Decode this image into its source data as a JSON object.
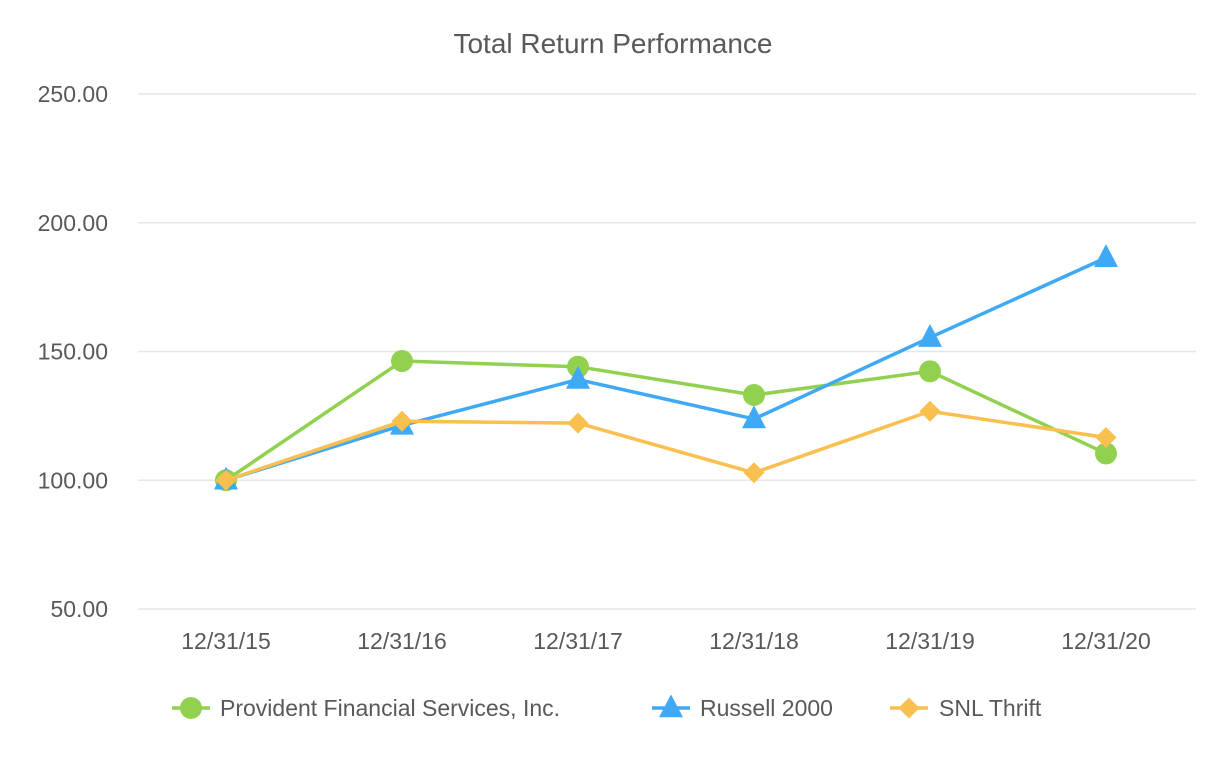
{
  "chart_data": {
    "type": "line",
    "title": "Total Return Performance",
    "xlabel": "",
    "ylabel": "",
    "categories": [
      "12/31/15",
      "12/31/16",
      "12/31/17",
      "12/31/18",
      "12/31/19",
      "12/31/20"
    ],
    "y_ticks": [
      "50.00",
      "100.00",
      "150.00",
      "200.00",
      "250.00"
    ],
    "ylim": [
      50,
      250
    ],
    "grid": true,
    "legend_position": "bottom",
    "series": [
      {
        "name": "Provident Financial Services, Inc.",
        "color": "#92d050",
        "marker": "circle",
        "values": [
          100.0,
          146.3,
          144.1,
          133.1,
          142.3,
          110.4
        ]
      },
      {
        "name": "Russell 2000",
        "color": "#3fa9f5",
        "marker": "triangle",
        "values": [
          100.0,
          121.3,
          139.1,
          123.8,
          155.4,
          186.4
        ]
      },
      {
        "name": "SNL Thrift",
        "color": "#f9bf4f",
        "marker": "diamond",
        "values": [
          100.0,
          122.9,
          122.2,
          102.9,
          126.8,
          116.6
        ]
      }
    ]
  }
}
